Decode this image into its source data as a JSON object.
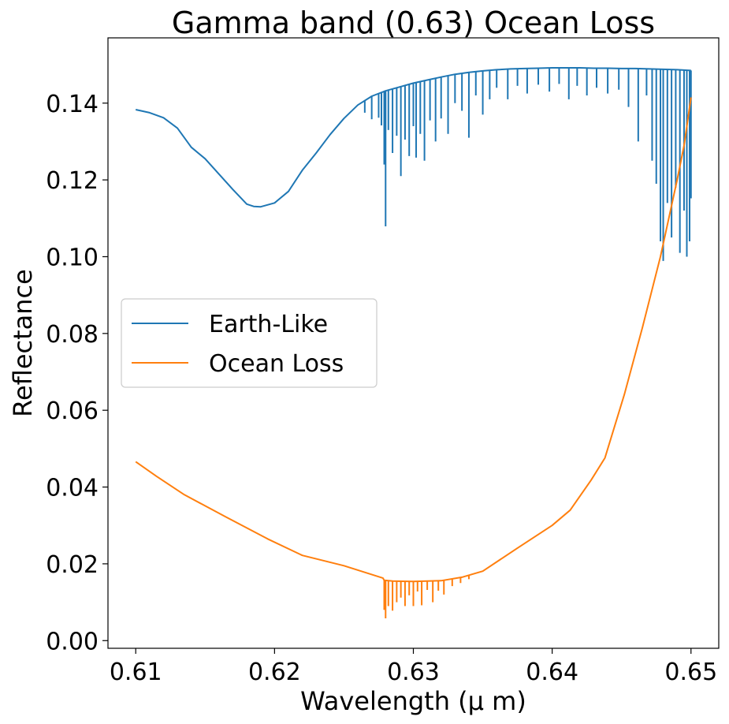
{
  "chart_data": {
    "type": "line",
    "title": "Gamma band (0.63) Ocean Loss",
    "xlabel": "Wavelength (μ m)",
    "ylabel": "Reflectance",
    "xlim": [
      0.608,
      0.652
    ],
    "ylim": [
      -0.002,
      0.157
    ],
    "x_ticks": [
      "0.61",
      "0.62",
      "0.63",
      "0.64",
      "0.65"
    ],
    "y_ticks": [
      "0.00",
      "0.02",
      "0.04",
      "0.06",
      "0.08",
      "0.10",
      "0.12",
      "0.14"
    ],
    "grid": false,
    "legend_position": "center-left",
    "series": [
      {
        "name": "Earth-Like",
        "color": "#1f77b4",
        "x": [
          0.61,
          0.611,
          0.612,
          0.613,
          0.614,
          0.615,
          0.616,
          0.617,
          0.618,
          0.6185,
          0.619,
          0.62,
          0.621,
          0.622,
          0.623,
          0.624,
          0.625,
          0.626,
          0.627,
          0.628,
          0.629,
          0.63,
          0.631,
          0.632,
          0.633,
          0.634,
          0.635,
          0.636,
          0.637,
          0.638,
          0.639,
          0.64,
          0.641,
          0.642,
          0.643,
          0.644,
          0.645,
          0.646,
          0.647,
          0.648,
          0.649,
          0.65
        ],
        "y": [
          0.1383,
          0.1375,
          0.1362,
          0.1335,
          0.1285,
          0.1255,
          0.1215,
          0.1175,
          0.1137,
          0.1131,
          0.113,
          0.114,
          0.117,
          0.1225,
          0.127,
          0.1318,
          0.136,
          0.1395,
          0.1418,
          0.1432,
          0.1442,
          0.1452,
          0.146,
          0.1468,
          0.1475,
          0.148,
          0.1484,
          0.1487,
          0.1489,
          0.149,
          0.1491,
          0.1492,
          0.1492,
          0.1492,
          0.1491,
          0.1491,
          0.149,
          0.149,
          0.1489,
          0.1488,
          0.1487,
          0.1485
        ],
        "absorption_lines": [
          [
            0.6265,
            0.1375
          ],
          [
            0.627,
            0.1358
          ],
          [
            0.6275,
            0.1362
          ],
          [
            0.6277,
            0.1342
          ],
          [
            0.6279,
            0.124
          ],
          [
            0.628,
            0.1079
          ],
          [
            0.6282,
            0.133
          ],
          [
            0.6285,
            0.127
          ],
          [
            0.6288,
            0.1315
          ],
          [
            0.6291,
            0.121
          ],
          [
            0.6294,
            0.1305
          ],
          [
            0.6297,
            0.1262
          ],
          [
            0.63,
            0.134
          ],
          [
            0.6302,
            0.1258
          ],
          [
            0.6305,
            0.132
          ],
          [
            0.6308,
            0.125
          ],
          [
            0.6312,
            0.1355
          ],
          [
            0.6316,
            0.13
          ],
          [
            0.632,
            0.136
          ],
          [
            0.6325,
            0.132
          ],
          [
            0.633,
            0.14
          ],
          [
            0.6335,
            0.138
          ],
          [
            0.634,
            0.131
          ],
          [
            0.6345,
            0.142
          ],
          [
            0.635,
            0.137
          ],
          [
            0.6355,
            0.141
          ],
          [
            0.636,
            0.144
          ],
          [
            0.6368,
            0.141
          ],
          [
            0.6375,
            0.1445
          ],
          [
            0.6382,
            0.1425
          ],
          [
            0.639,
            0.1448
          ],
          [
            0.6398,
            0.143
          ],
          [
            0.6405,
            0.145
          ],
          [
            0.6412,
            0.141
          ],
          [
            0.6418,
            0.1445
          ],
          [
            0.6425,
            0.142
          ],
          [
            0.6432,
            0.144
          ],
          [
            0.644,
            0.1425
          ],
          [
            0.6448,
            0.1435
          ],
          [
            0.6455,
            0.139
          ],
          [
            0.6462,
            0.13
          ],
          [
            0.6468,
            0.142
          ],
          [
            0.6472,
            0.125
          ],
          [
            0.6475,
            0.119
          ],
          [
            0.6478,
            0.104
          ],
          [
            0.648,
            0.0989
          ],
          [
            0.6483,
            0.114
          ],
          [
            0.6486,
            0.105
          ],
          [
            0.6489,
            0.118
          ],
          [
            0.6492,
            0.101
          ],
          [
            0.6495,
            0.112
          ],
          [
            0.6497,
            0.1
          ],
          [
            0.6499,
            0.104
          ],
          [
            0.65,
            0.1152
          ]
        ]
      },
      {
        "name": "Ocean Loss",
        "color": "#ff7f0e",
        "x": [
          0.61,
          0.6115,
          0.6135,
          0.6165,
          0.6195,
          0.622,
          0.625,
          0.6278,
          0.6279,
          0.6285,
          0.63,
          0.632,
          0.6335,
          0.635,
          0.6375,
          0.64,
          0.6413,
          0.6428,
          0.6438,
          0.6452,
          0.6465,
          0.6478,
          0.649,
          0.6495,
          0.65
        ],
        "y": [
          0.0466,
          0.0428,
          0.038,
          0.0322,
          0.0265,
          0.0222,
          0.0195,
          0.0163,
          0.0157,
          0.0155,
          0.0154,
          0.0156,
          0.0165,
          0.0181,
          0.0241,
          0.03,
          0.034,
          0.0418,
          0.0476,
          0.0641,
          0.0815,
          0.1,
          0.12,
          0.129,
          0.1415
        ],
        "absorption_lines": [
          [
            0.6279,
            0.008
          ],
          [
            0.628,
            0.0058
          ],
          [
            0.6282,
            0.009
          ],
          [
            0.6285,
            0.0078
          ],
          [
            0.6288,
            0.01
          ],
          [
            0.6291,
            0.0112
          ],
          [
            0.6294,
            0.009
          ],
          [
            0.6297,
            0.0118
          ],
          [
            0.63,
            0.009
          ],
          [
            0.6303,
            0.0128
          ],
          [
            0.6306,
            0.0092
          ],
          [
            0.631,
            0.0132
          ],
          [
            0.6314,
            0.01
          ],
          [
            0.6318,
            0.013
          ],
          [
            0.6322,
            0.012
          ],
          [
            0.6328,
            0.0142
          ],
          [
            0.6334,
            0.015
          ],
          [
            0.634,
            0.016
          ]
        ]
      }
    ]
  }
}
